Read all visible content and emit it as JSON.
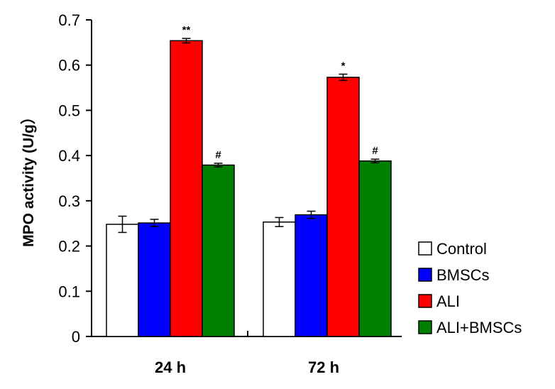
{
  "chart_data": {
    "type": "bar",
    "categories": [
      "24 h",
      "72 h"
    ],
    "ylabel": "MPO activity (U/g）",
    "ylim": [
      0,
      0.7
    ],
    "yticks": [
      "0",
      "0.1",
      "0.2",
      "0.3",
      "0.4",
      "0.5",
      "0.6",
      "0.7"
    ],
    "grid": false,
    "legend_position": "right",
    "series": [
      {
        "name": "Control",
        "color": "#ffffff",
        "values": [
          0.248,
          0.253
        ],
        "errors": [
          0.018,
          0.01
        ],
        "annotations": [
          "",
          ""
        ]
      },
      {
        "name": "BMSCs",
        "color": "#0000ff",
        "values": [
          0.251,
          0.269
        ],
        "errors": [
          0.008,
          0.008
        ],
        "annotations": [
          "",
          ""
        ]
      },
      {
        "name": "ALI",
        "color": "#ff0000",
        "values": [
          0.654,
          0.573
        ],
        "errors": [
          0.005,
          0.007
        ],
        "annotations": [
          "**",
          "*"
        ]
      },
      {
        "name": "ALI+BMSCs",
        "color": "#008000",
        "values": [
          0.379,
          0.388
        ],
        "errors": [
          0.004,
          0.004
        ],
        "annotations": [
          "#",
          "#"
        ]
      }
    ]
  }
}
